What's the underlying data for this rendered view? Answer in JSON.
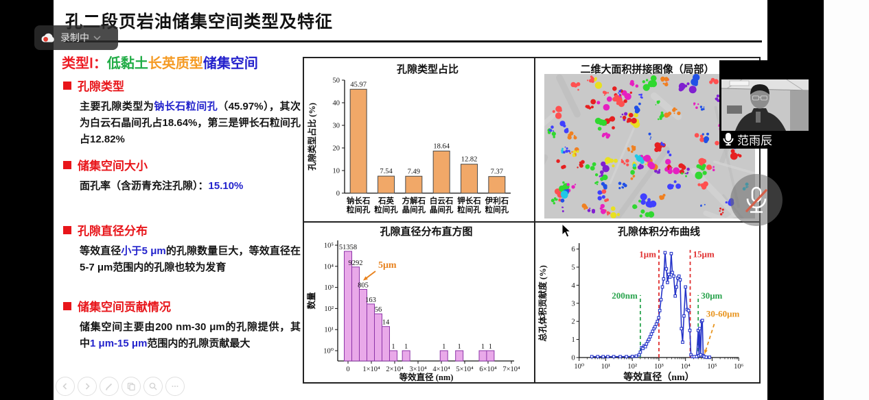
{
  "recording": {
    "label": "录制中"
  },
  "slide": {
    "title": "孔二段页岩油储集空间类型及特征",
    "heading": [
      {
        "t": "类型Ⅰ：",
        "c": "#ed1c24"
      },
      {
        "t": "低黏土",
        "c": "#21ac46"
      },
      {
        "t": "长英质型",
        "c": "#f59a23"
      },
      {
        "t": "储集空间",
        "c": "#2320cc"
      }
    ],
    "sections": [
      {
        "title": "孔隙类型",
        "body": [
          {
            "t": "主要孔隙类型为"
          },
          {
            "t": "钠长石粒间孔",
            "c": "#2222cc"
          },
          {
            "t": "（45.97%），其次为白云石晶间孔占18.64%，第三是钾长石粒间孔占12.82%"
          }
        ]
      },
      {
        "title": "储集空间大小",
        "body": [
          {
            "t": "面孔率（含沥青充注孔隙）："
          },
          {
            "t": "15.10%",
            "c": "#2222cc"
          }
        ]
      },
      {
        "title": "孔隙直径分布",
        "body": [
          {
            "t": "等效直径"
          },
          {
            "t": "小于5 μm",
            "c": "#2222cc"
          },
          {
            "t": "的孔隙数量巨大，等效直径在5-7 μm范围内的孔隙也较为发育"
          }
        ]
      },
      {
        "title": "储集空间贡献情况",
        "body": [
          {
            "t": "储集空间主要由200 nm-30 μm的孔隙提供，其中"
          },
          {
            "t": "1 μm-15 μm",
            "c": "#2222cc"
          },
          {
            "t": "范围内的孔隙贡献最大"
          }
        ]
      }
    ]
  },
  "sem": {
    "title": "二维大面积拼接图像（局部）",
    "palette": [
      "#e62020",
      "#2050e6",
      "#e620c0",
      "#20c8e6",
      "#30d830",
      "#f08020",
      "#e8e020",
      "#8020d0",
      "#ff5050",
      "#4040ff"
    ]
  },
  "chart_data": [
    {
      "type": "bar",
      "title": "孔隙类型占比",
      "ylabel": "孔隙类型占比 (%)",
      "categories": [
        [
          "钠长石",
          "粒间孔"
        ],
        [
          "石英",
          "粒间孔"
        ],
        [
          "方解石",
          "晶间孔"
        ],
        [
          "白云石",
          "晶间孔"
        ],
        [
          "钾长石",
          "粒间孔"
        ],
        [
          "伊利石",
          "粒间孔"
        ]
      ],
      "values": [
        45.97,
        7.54,
        7.49,
        18.64,
        12.82,
        7.37
      ],
      "ylim": [
        0,
        50
      ],
      "yticks": [
        0,
        10,
        20,
        30,
        40,
        50
      ],
      "bar_color": "#f1a868",
      "bar_border": "#4a4a4a"
    },
    {
      "type": "histogram-logy",
      "title": "孔隙直径分布直方图",
      "xlabel": "等效直径 (nm)",
      "ylabel": "数量",
      "bin_centers_nm": [
        0,
        3235,
        6470,
        9705,
        12940,
        16175,
        19410,
        24900,
        41100,
        47700,
        57800,
        61000
      ],
      "counts": [
        51358,
        9292,
        805,
        163,
        56,
        14,
        1,
        1,
        1,
        1,
        1,
        1
      ],
      "bin_width_nm": 3235,
      "xlim_nm": [
        0,
        70000
      ],
      "xtick_labels": [
        "0",
        "1×10⁴",
        "2×10⁴",
        "3×10⁴",
        "4×10⁴",
        "5×10⁴",
        "6×10⁴",
        "7×10⁴"
      ],
      "ytick_labels": [
        "10⁰",
        "10¹",
        "10²",
        "10³",
        "10⁴",
        "10⁵"
      ],
      "annotation": {
        "text": "5μm",
        "color": "#e8821e"
      },
      "bar_color": "#e9a9e9",
      "bar_border": "#8d35a8"
    },
    {
      "type": "line-logx",
      "title": "孔隙体积分布曲线",
      "xlabel": "等效直径（nm）",
      "ylabel": "总孔体积贡献度 (%)",
      "xtick_labels": [
        "10⁰",
        "10¹",
        "10²",
        "10³",
        "10⁴",
        "10⁵",
        "10⁶"
      ],
      "yticks": [
        0,
        1,
        2,
        3,
        4,
        5,
        6
      ],
      "ylim": [
        0,
        6
      ],
      "line_color": "#2433c8",
      "x_nm": [
        3,
        5,
        8,
        12,
        20,
        35,
        60,
        100,
        140,
        180,
        200,
        225,
        250,
        280,
        310,
        340,
        380,
        420,
        470,
        520,
        580,
        650,
        720,
        800,
        880,
        980,
        1080,
        1200,
        1350,
        1500,
        1700,
        1900,
        2100,
        2350,
        2600,
        2900,
        3200,
        3600,
        4100,
        4600,
        5100,
        5700,
        6300,
        7000,
        7800,
        8700,
        10000,
        11500,
        13000,
        14500,
        16000,
        18000,
        21000,
        26000,
        30000,
        32000,
        34000,
        37000,
        40000,
        43000,
        46000,
        50000,
        60000,
        80000
      ],
      "y_pct": [
        0.05,
        0.05,
        0.05,
        0.05,
        0.05,
        0.05,
        0.05,
        0.06,
        0.08,
        0.15,
        0.3,
        0.55,
        0.5,
        0.65,
        0.6,
        0.75,
        0.9,
        1.0,
        1.15,
        1.3,
        1.45,
        1.6,
        1.7,
        1.85,
        2.0,
        2.2,
        2.6,
        3.2,
        3.9,
        4.35,
        5.8,
        4.9,
        4.15,
        4.6,
        4.45,
        5.75,
        4.7,
        4.5,
        3.4,
        3.9,
        4.4,
        4.5,
        4.3,
        1.6,
        0.85,
        2.3,
        3.9,
        2.65,
        2.6,
        1.5,
        0.15,
        0.05,
        0.05,
        0.05,
        1.5,
        0.1,
        1.6,
        0.15,
        2.0,
        2.05,
        0.1,
        0.05,
        0.02,
        0.02
      ],
      "ref_lines": [
        {
          "nm": 200,
          "label": "200nm",
          "color": "#2ba44e",
          "top_pct": 3.45,
          "side": "left",
          "label_pct": 3.25
        },
        {
          "nm": 1000,
          "label": "1μm",
          "color": "#e03030",
          "top_pct": 5.95,
          "side": "left",
          "label_pct": 5.55
        },
        {
          "nm": 15000,
          "label": "15μm",
          "color": "#e03030",
          "top_pct": 5.95,
          "side": "right",
          "label_pct": 5.55
        },
        {
          "nm": 30000,
          "label": "30μm",
          "color": "#2ba44e",
          "top_pct": 3.45,
          "side": "right",
          "label_pct": 3.25
        }
      ],
      "annotation": {
        "text": "30-60μm",
        "color": "#e8941e"
      }
    }
  ],
  "webcam": {
    "name": "范雨辰"
  },
  "nav": {
    "buttons": [
      "previous",
      "next",
      "annotate",
      "copy",
      "magnify",
      "more"
    ]
  }
}
